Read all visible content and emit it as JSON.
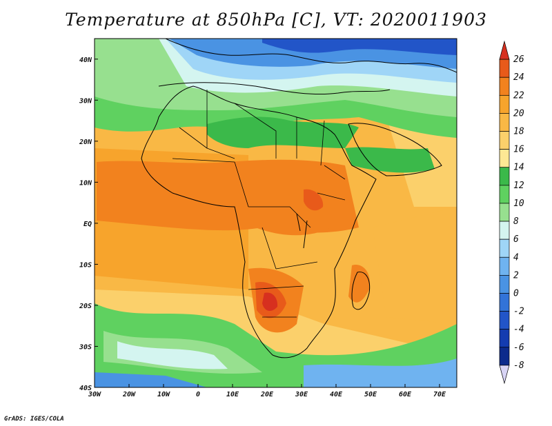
{
  "title": "Temperature at 850hPa [C], VT: 2020011903",
  "credit": "GrADS: IGES/COLA",
  "map": {
    "type": "filled-contour-map",
    "variable": "Temperature at 850hPa",
    "units": "C",
    "valid_time": "2020011903",
    "region": "Africa",
    "lon_range": [
      -30,
      75
    ],
    "lat_range": [
      -40,
      45
    ],
    "lon_ticks": [
      {
        "value": -30,
        "label": "30W"
      },
      {
        "value": -20,
        "label": "20W"
      },
      {
        "value": -10,
        "label": "10W"
      },
      {
        "value": 0,
        "label": "0"
      },
      {
        "value": 10,
        "label": "10E"
      },
      {
        "value": 20,
        "label": "20E"
      },
      {
        "value": 30,
        "label": "30E"
      },
      {
        "value": 40,
        "label": "40E"
      },
      {
        "value": 50,
        "label": "50E"
      },
      {
        "value": 60,
        "label": "60E"
      },
      {
        "value": 70,
        "label": "70E"
      }
    ],
    "lat_ticks": [
      {
        "value": 40,
        "label": "40N"
      },
      {
        "value": 30,
        "label": "30N"
      },
      {
        "value": 20,
        "label": "20N"
      },
      {
        "value": 10,
        "label": "10N"
      },
      {
        "value": 0,
        "label": "EQ"
      },
      {
        "value": -10,
        "label": "10S"
      },
      {
        "value": -20,
        "label": "20S"
      },
      {
        "value": -30,
        "label": "30S"
      },
      {
        "value": -40,
        "label": "40S"
      }
    ]
  },
  "colorbar": {
    "levels": [
      "26",
      "24",
      "22",
      "20",
      "18",
      "16",
      "14",
      "12",
      "10",
      "8",
      "6",
      "4",
      "2",
      "0",
      "-2",
      "-4",
      "-6",
      "-8"
    ],
    "bins": [
      {
        "upper": null,
        "color": "#d7301f"
      },
      {
        "upper": 26,
        "color": "#e85a1a"
      },
      {
        "upper": 24,
        "color": "#f2821e"
      },
      {
        "upper": 22,
        "color": "#f7a42c"
      },
      {
        "upper": 20,
        "color": "#f9b845"
      },
      {
        "upper": 18,
        "color": "#fbd06b"
      },
      {
        "upper": 16,
        "color": "#fde894"
      },
      {
        "upper": 14,
        "color": "#3bb94a"
      },
      {
        "upper": 12,
        "color": "#5fd160"
      },
      {
        "upper": 10,
        "color": "#97e08f"
      },
      {
        "upper": 8,
        "color": "#d4f5f0"
      },
      {
        "upper": 6,
        "color": "#9fd5f7"
      },
      {
        "upper": 4,
        "color": "#6fb3f0"
      },
      {
        "upper": 2,
        "color": "#4a93e3"
      },
      {
        "upper": 0,
        "color": "#3273d8"
      },
      {
        "upper": -2,
        "color": "#2255c8"
      },
      {
        "upper": -4,
        "color": "#143cb0"
      },
      {
        "upper": -6,
        "color": "#0c2a8c"
      },
      {
        "upper": -8,
        "color": "#d8d4f5"
      }
    ]
  },
  "colors": {
    "ocean_warm": "#f9b845",
    "ocean_mid": "#fbd06b",
    "land_cool": "#97e08f",
    "north_cold": "#4a93e3",
    "hot_spot": "#e85a1a"
  }
}
